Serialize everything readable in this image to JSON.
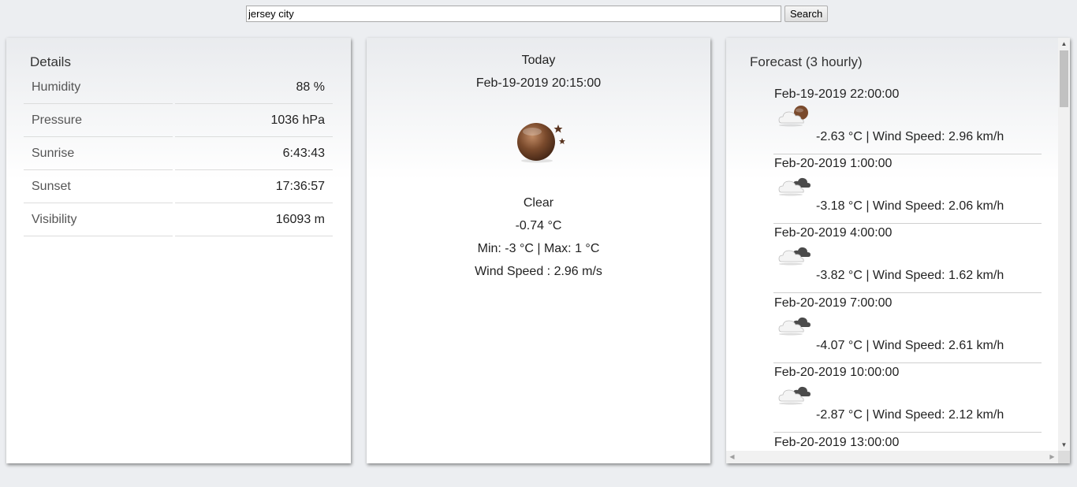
{
  "search": {
    "value": "jersey city",
    "button_label": "Search"
  },
  "details": {
    "title": "Details",
    "rows": [
      {
        "label": "Humidity",
        "value": "88 %"
      },
      {
        "label": "Pressure",
        "value": "1036 hPa"
      },
      {
        "label": "Sunrise",
        "value": "6:43:43"
      },
      {
        "label": "Sunset",
        "value": "17:36:57"
      },
      {
        "label": "Visibility",
        "value": "16093 m"
      }
    ]
  },
  "today": {
    "title": "Today",
    "datetime": "Feb-19-2019 20:15:00",
    "icon": "moon-night-icon",
    "condition": "Clear",
    "temperature": "-0.74 °C",
    "min_max": "Min: -3 °C | Max: 1 °C",
    "wind": "Wind Speed : 2.96 m/s"
  },
  "forecast": {
    "title": "Forecast (3 hourly)",
    "items": [
      {
        "datetime": "Feb-19-2019 22:00:00",
        "icon": "cloud-moon-icon",
        "info": "-2.63 °C | Wind Speed: 2.96 km/h"
      },
      {
        "datetime": "Feb-20-2019 1:00:00",
        "icon": "dark-cloud-icon",
        "info": "-3.18 °C | Wind Speed: 2.06 km/h"
      },
      {
        "datetime": "Feb-20-2019 4:00:00",
        "icon": "dark-cloud-icon",
        "info": "-3.82 °C | Wind Speed: 1.62 km/h"
      },
      {
        "datetime": "Feb-20-2019 7:00:00",
        "icon": "dark-cloud-icon",
        "info": "-4.07 °C | Wind Speed: 2.61 km/h"
      },
      {
        "datetime": "Feb-20-2019 10:00:00",
        "icon": "dark-cloud-icon",
        "info": "-2.87 °C | Wind Speed: 2.12 km/h"
      },
      {
        "datetime": "Feb-20-2019 13:00:00",
        "icon": "dark-cloud-icon",
        "info": ""
      }
    ]
  }
}
